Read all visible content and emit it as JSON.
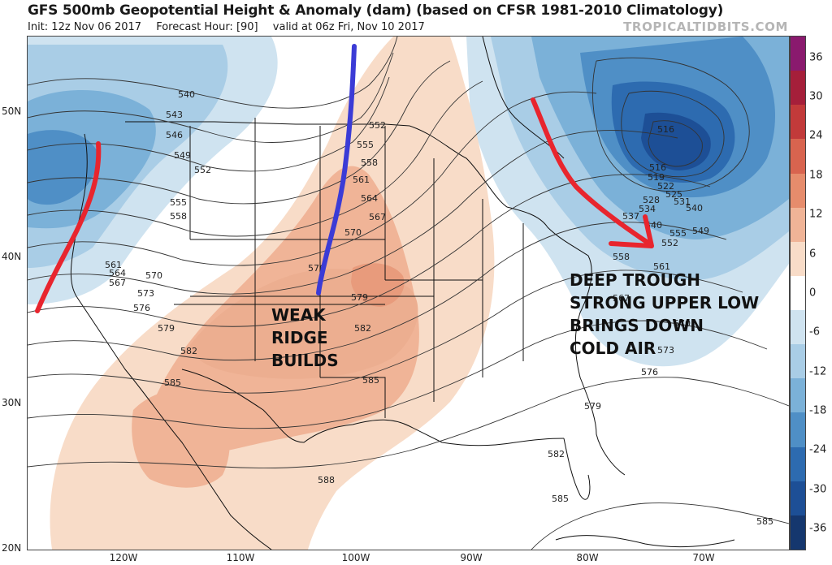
{
  "header": {
    "title": "GFS 500mb Geopotential Height & Anomaly (dam) (based on CFSR 1981-2010 Climatology)",
    "init": "Init: 12z Nov 06 2017",
    "forecast_hour": "Forecast Hour: [90]",
    "valid": "valid at 06z Fri, Nov 10 2017",
    "brand": "TROPICALTIDBITS.COM"
  },
  "axes": {
    "lat_labels": [
      "50N",
      "40N",
      "30N",
      "20N"
    ],
    "lon_labels": [
      "120W",
      "110W",
      "100W",
      "90W",
      "80W",
      "70W"
    ]
  },
  "colorbar": {
    "labels": [
      "36",
      "30",
      "24",
      "18",
      "12",
      "6",
      "0",
      "-6",
      "-12",
      "-18",
      "-24",
      "-30",
      "-36"
    ],
    "colors": [
      "#8a1a6e",
      "#a51f3a",
      "#c23a3a",
      "#d8644f",
      "#e68c6c",
      "#f0b497",
      "#f8dcc8",
      "#ffffff",
      "#cfe3f0",
      "#a9cde6",
      "#7bb1d8",
      "#4f8fc6",
      "#2d6bb0",
      "#1d4f96",
      "#15376e"
    ]
  },
  "contour_labels": [
    "540",
    "543",
    "546",
    "549",
    "552",
    "555",
    "558",
    "561",
    "564",
    "567",
    "570",
    "573",
    "576",
    "579",
    "582",
    "585",
    "588",
    "516",
    "519",
    "522",
    "525",
    "528",
    "531",
    "534",
    "537"
  ],
  "annotations": {
    "weak_ridge": [
      "WEAK",
      "RIDGE",
      "BUILDS"
    ],
    "deep_trough": [
      "DEEP TROUGH",
      "STRONG UPPER LOW",
      "BRINGS DOWN",
      "COLD AIR"
    ]
  },
  "annotation_colors": {
    "trough_line": "#e8252e",
    "ridge_line": "#3b3bd6"
  }
}
